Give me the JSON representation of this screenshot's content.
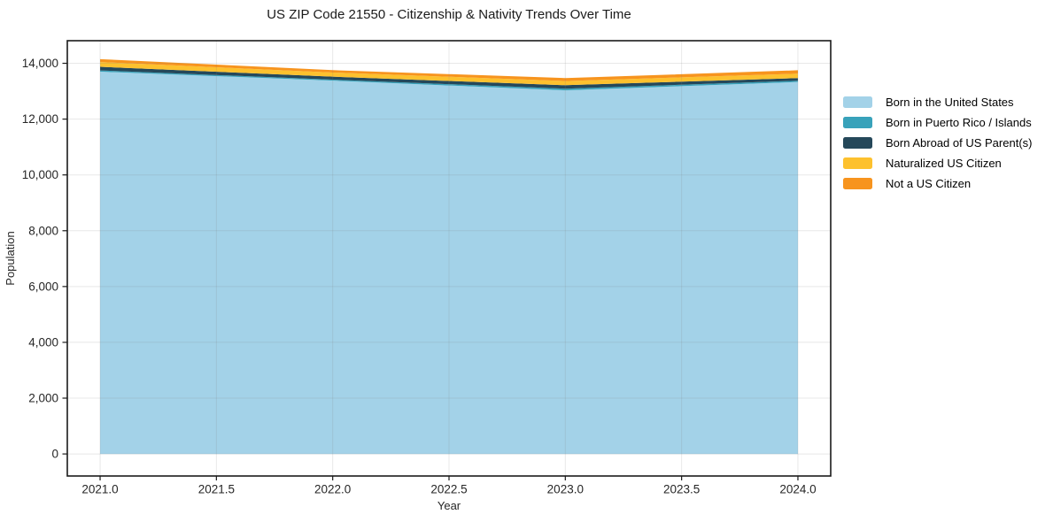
{
  "title": "US ZIP Code 21550 - Citizenship & Nativity Trends Over Time",
  "chart_data": {
    "type": "area",
    "stacked": true,
    "title": "US ZIP Code 21550 - Citizenship & Nativity Trends Over Time",
    "xlabel": "Year",
    "ylabel": "Population",
    "x": [
      2021,
      2022,
      2023,
      2024
    ],
    "series": [
      {
        "name": "Born in the United States",
        "color": "#a3d2e8",
        "values": [
          13700,
          13380,
          13030,
          13330
        ]
      },
      {
        "name": "Born in Puerto Rico / Islands",
        "color": "#38a2ba",
        "values": [
          45,
          35,
          60,
          45
        ]
      },
      {
        "name": "Born Abroad of US Parent(s)",
        "color": "#25485a",
        "values": [
          130,
          105,
          125,
          95
        ]
      },
      {
        "name": "Naturalized US Citizen",
        "color": "#fdc12e",
        "values": [
          170,
          150,
          150,
          160
        ]
      },
      {
        "name": "Not a US Citizen",
        "color": "#f7941e",
        "values": [
          105,
          85,
          105,
          120
        ]
      }
    ],
    "x_ticks": [
      2021.0,
      2021.5,
      2022.0,
      2022.5,
      2023.0,
      2023.5,
      2024.0
    ],
    "x_tick_labels": [
      "2021.0",
      "2021.5",
      "2022.0",
      "2022.5",
      "2023.0",
      "2023.5",
      "2024.0"
    ],
    "y_ticks": [
      0,
      2000,
      4000,
      6000,
      8000,
      10000,
      12000,
      14000
    ],
    "y_tick_labels": [
      "0",
      "2,000",
      "4,000",
      "6,000",
      "8,000",
      "10,000",
      "12,000",
      "14,000"
    ],
    "xlim": [
      2020.859,
      2024.141
    ],
    "ylim": [
      -790,
      14810
    ],
    "grid": true,
    "legend_position": "right-outside",
    "legend_frame": false
  }
}
